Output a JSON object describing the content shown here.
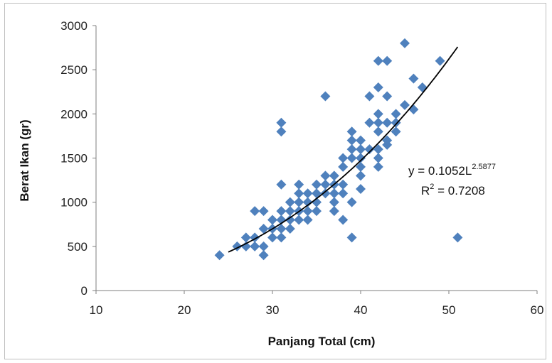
{
  "chart_data": {
    "type": "scatter",
    "xlabel": "Panjang Total (cm)",
    "ylabel": "Berat Ikan (gr)",
    "xlim": [
      10,
      60
    ],
    "ylim": [
      0,
      3000
    ],
    "x_ticks": [
      10,
      20,
      30,
      40,
      50,
      60
    ],
    "y_ticks": [
      0,
      500,
      1000,
      1500,
      2000,
      2500,
      3000
    ],
    "x_tick_labels": [
      "10",
      "20",
      "30",
      "40",
      "50",
      "60"
    ],
    "y_tick_labels": [
      "0",
      "500",
      "1000",
      "1500",
      "2000",
      "2500",
      "3000"
    ],
    "grid": false,
    "marker": "diamond",
    "marker_color": "#4f81bd",
    "trend_color": "#000000",
    "trendline": {
      "type": "power",
      "a": 0.1052,
      "b": 2.5877,
      "x_range": [
        25,
        51
      ]
    },
    "equation": {
      "line1_prefix": "y = 0.1052L",
      "line1_exponent": "2.5877",
      "line2_prefix": "R",
      "line2_exponent": "2",
      "line2_suffix": " = 0.7208"
    },
    "points": [
      [
        24,
        400
      ],
      [
        26,
        500
      ],
      [
        27,
        500
      ],
      [
        27,
        600
      ],
      [
        28,
        500
      ],
      [
        28,
        600
      ],
      [
        28,
        900
      ],
      [
        29,
        400
      ],
      [
        29,
        500
      ],
      [
        29,
        700
      ],
      [
        29,
        900
      ],
      [
        30,
        600
      ],
      [
        30,
        700
      ],
      [
        30,
        800
      ],
      [
        31,
        600
      ],
      [
        31,
        700
      ],
      [
        31,
        800
      ],
      [
        31,
        900
      ],
      [
        31,
        1200
      ],
      [
        31,
        1800
      ],
      [
        31,
        1900
      ],
      [
        32,
        700
      ],
      [
        32,
        800
      ],
      [
        32,
        900
      ],
      [
        32,
        1000
      ],
      [
        33,
        800
      ],
      [
        33,
        900
      ],
      [
        33,
        1000
      ],
      [
        33,
        1100
      ],
      [
        33,
        1200
      ],
      [
        34,
        800
      ],
      [
        34,
        900
      ],
      [
        34,
        1000
      ],
      [
        34,
        1100
      ],
      [
        35,
        900
      ],
      [
        35,
        1000
      ],
      [
        35,
        1100
      ],
      [
        35,
        1200
      ],
      [
        36,
        1100
      ],
      [
        36,
        1200
      ],
      [
        36,
        1300
      ],
      [
        36,
        2200
      ],
      [
        37,
        900
      ],
      [
        37,
        1000
      ],
      [
        37,
        1100
      ],
      [
        37,
        1200
      ],
      [
        37,
        1300
      ],
      [
        38,
        800
      ],
      [
        38,
        1100
      ],
      [
        38,
        1200
      ],
      [
        38,
        1400
      ],
      [
        38,
        1500
      ],
      [
        39,
        600
      ],
      [
        39,
        1000
      ],
      [
        39,
        1500
      ],
      [
        39,
        1600
      ],
      [
        39,
        1700
      ],
      [
        39,
        1800
      ],
      [
        40,
        1150
      ],
      [
        40,
        1300
      ],
      [
        40,
        1400
      ],
      [
        40,
        1500
      ],
      [
        40,
        1600
      ],
      [
        40,
        1700
      ],
      [
        41,
        1600
      ],
      [
        41,
        1900
      ],
      [
        41,
        2200
      ],
      [
        42,
        1400
      ],
      [
        42,
        1500
      ],
      [
        42,
        1600
      ],
      [
        42,
        1800
      ],
      [
        42,
        1900
      ],
      [
        42,
        2000
      ],
      [
        42,
        2300
      ],
      [
        42,
        2600
      ],
      [
        43,
        1650
      ],
      [
        43,
        1700
      ],
      [
        43,
        1900
      ],
      [
        43,
        2200
      ],
      [
        43,
        2600
      ],
      [
        44,
        1800
      ],
      [
        44,
        1900
      ],
      [
        44,
        2000
      ],
      [
        45,
        2100
      ],
      [
        45,
        2800
      ],
      [
        46,
        2050
      ],
      [
        46,
        2400
      ],
      [
        47,
        2300
      ],
      [
        49,
        2600
      ],
      [
        51,
        600
      ]
    ]
  }
}
